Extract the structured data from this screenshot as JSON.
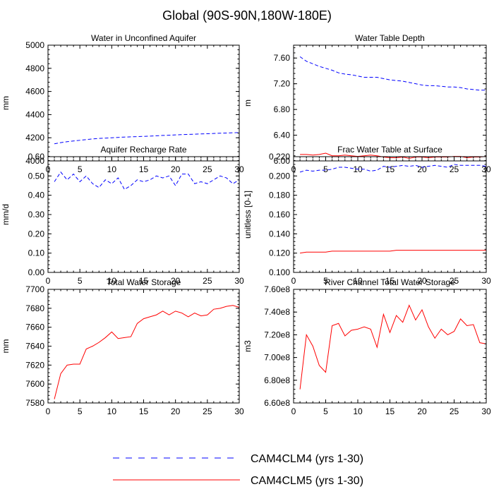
{
  "figure_title": "Global (90S-90N,180W-180E)",
  "colors": {
    "clm4": "#0000ff",
    "clm5": "#ff0000",
    "axis": "#000000",
    "zero_line": "#8b0000"
  },
  "legend": [
    {
      "label": "CAM4CLM4 (yrs 1-30)",
      "style": "dashed",
      "color": "#0000ff"
    },
    {
      "label": "CAM4CLM5 (yrs 1-30)",
      "style": "solid",
      "color": "#ff0000"
    }
  ],
  "chart_data": [
    {
      "type": "line",
      "title": "Water in Unconfined Aquifer",
      "xlabel": "",
      "ylabel": "mm",
      "xlim": [
        0,
        30
      ],
      "ylim": [
        4000,
        5000
      ],
      "xticks": [
        "0",
        "5",
        "10",
        "15",
        "20",
        "25",
        "30"
      ],
      "yticks": [
        "4000",
        "4200",
        "4400",
        "4600",
        "4800",
        "5000"
      ],
      "x": [
        1,
        2,
        3,
        4,
        5,
        6,
        7,
        8,
        9,
        10,
        11,
        12,
        13,
        14,
        15,
        16,
        17,
        18,
        19,
        20,
        21,
        22,
        23,
        24,
        25,
        26,
        27,
        28,
        29,
        30
      ],
      "series": [
        {
          "name": "CAM4CLM4 (yrs 1-30)",
          "values": [
            4148,
            4158,
            4166,
            4172,
            4178,
            4184,
            4190,
            4194,
            4197,
            4200,
            4203,
            4206,
            4208,
            4210,
            4212,
            4214,
            4217,
            4220,
            4222,
            4225,
            4227,
            4229,
            4231,
            4233,
            4235,
            4237,
            4239,
            4241,
            4243,
            4245
          ]
        },
        {
          "name": "CAM4CLM5 (yrs 1-30)",
          "values": [
            5000,
            5000,
            5000,
            5000,
            5000,
            5000,
            5000,
            5000,
            5000,
            5000,
            5000,
            5000,
            5000,
            5000,
            5000,
            5000,
            5000,
            5000,
            5000,
            5000,
            5000,
            5000,
            5000,
            5000,
            5000,
            5000,
            5000,
            5000,
            5000,
            5000
          ]
        }
      ]
    },
    {
      "type": "line",
      "title": "Water Table Depth",
      "xlabel": "",
      "ylabel": "m",
      "xlim": [
        0,
        30
      ],
      "ylim": [
        6.0,
        7.8
      ],
      "xticks": [
        "0",
        "5",
        "10",
        "15",
        "20",
        "25",
        "30"
      ],
      "yticks": [
        "6.00",
        "6.40",
        "6.80",
        "7.20",
        "7.60"
      ],
      "ytick_values": [
        6.0,
        6.4,
        6.8,
        7.2,
        7.6
      ],
      "x": [
        1,
        2,
        3,
        4,
        5,
        6,
        7,
        8,
        9,
        10,
        11,
        12,
        13,
        14,
        15,
        16,
        17,
        18,
        19,
        20,
        21,
        22,
        23,
        24,
        25,
        26,
        27,
        28,
        29,
        30
      ],
      "series": [
        {
          "name": "CAM4CLM4 (yrs 1-30)",
          "values": [
            7.62,
            7.55,
            7.51,
            7.47,
            7.44,
            7.41,
            7.37,
            7.35,
            7.34,
            7.32,
            7.3,
            7.3,
            7.3,
            7.28,
            7.26,
            7.25,
            7.24,
            7.22,
            7.2,
            7.18,
            7.17,
            7.17,
            7.16,
            7.15,
            7.15,
            7.14,
            7.12,
            7.11,
            7.1,
            7.1
          ]
        },
        {
          "name": "CAM4CLM5 (yrs 1-30)",
          "values": [
            6.1,
            6.1,
            6.09,
            6.1,
            6.12,
            6.08,
            6.08,
            6.09,
            6.08,
            6.07,
            6.08,
            6.09,
            6.08,
            6.06,
            6.05,
            6.05,
            6.06,
            6.04,
            6.06,
            6.06,
            6.05,
            6.06,
            6.06,
            6.06,
            6.07,
            6.07,
            6.05,
            6.06,
            6.06,
            6.07
          ]
        }
      ]
    },
    {
      "type": "line",
      "title": "Aquifer Recharge Rate",
      "xlabel": "",
      "ylabel": "mm/d",
      "xlim": [
        0,
        30
      ],
      "ylim": [
        0,
        0.6
      ],
      "xticks": [
        "0",
        "5",
        "10",
        "15",
        "20",
        "25",
        "30"
      ],
      "yticks": [
        "0.00",
        "0.10",
        "0.20",
        "0.30",
        "0.40",
        "0.50",
        "0.60"
      ],
      "ytick_values": [
        0,
        0.1,
        0.2,
        0.3,
        0.4,
        0.5,
        0.6
      ],
      "x": [
        1,
        2,
        3,
        4,
        5,
        6,
        7,
        8,
        9,
        10,
        11,
        12,
        13,
        14,
        15,
        16,
        17,
        18,
        19,
        20,
        21,
        22,
        23,
        24,
        25,
        26,
        27,
        28,
        29,
        30
      ],
      "series": [
        {
          "name": "CAM4CLM4 (yrs 1-30)",
          "values": [
            0.47,
            0.52,
            0.48,
            0.51,
            0.47,
            0.5,
            0.46,
            0.44,
            0.48,
            0.46,
            0.49,
            0.43,
            0.45,
            0.48,
            0.47,
            0.48,
            0.5,
            0.49,
            0.5,
            0.45,
            0.51,
            0.51,
            0.46,
            0.47,
            0.46,
            0.48,
            0.5,
            0.49,
            0.46,
            0.48
          ]
        },
        {
          "name": "CAM4CLM5 (yrs 1-30)",
          "values": [
            0,
            0,
            0,
            0,
            0,
            0,
            0,
            0,
            0,
            0,
            0,
            0,
            0,
            0,
            0,
            0,
            0,
            0,
            0,
            0,
            0,
            0,
            0,
            0,
            0,
            0,
            0,
            0,
            0,
            0
          ]
        }
      ]
    },
    {
      "type": "line",
      "title": "Frac Water Table at Surface",
      "xlabel": "",
      "ylabel": "unitless [0-1]",
      "xlim": [
        0,
        30
      ],
      "ylim": [
        0.1,
        0.22
      ],
      "xticks": [
        "0",
        "5",
        "10",
        "15",
        "20",
        "25",
        "30"
      ],
      "yticks": [
        "0.100",
        "0.120",
        "0.140",
        "0.160",
        "0.180",
        "0.200",
        "0.220"
      ],
      "ytick_values": [
        0.1,
        0.12,
        0.14,
        0.16,
        0.18,
        0.2,
        0.22
      ],
      "x": [
        1,
        2,
        3,
        4,
        5,
        6,
        7,
        8,
        9,
        10,
        11,
        12,
        13,
        14,
        15,
        16,
        17,
        18,
        19,
        20,
        21,
        22,
        23,
        24,
        25,
        26,
        27,
        28,
        29,
        30
      ],
      "series": [
        {
          "name": "CAM4CLM4 (yrs 1-30)",
          "values": [
            0.204,
            0.206,
            0.205,
            0.206,
            0.206,
            0.207,
            0.209,
            0.209,
            0.208,
            0.207,
            0.207,
            0.205,
            0.206,
            0.21,
            0.209,
            0.21,
            0.211,
            0.21,
            0.211,
            0.209,
            0.21,
            0.211,
            0.21,
            0.209,
            0.212,
            0.211,
            0.211,
            0.211,
            0.211,
            0.21
          ]
        },
        {
          "name": "CAM4CLM5 (yrs 1-30)",
          "values": [
            0.12,
            0.121,
            0.121,
            0.121,
            0.121,
            0.122,
            0.122,
            0.122,
            0.122,
            0.122,
            0.122,
            0.122,
            0.122,
            0.122,
            0.122,
            0.123,
            0.123,
            0.123,
            0.123,
            0.123,
            0.123,
            0.123,
            0.123,
            0.123,
            0.123,
            0.123,
            0.123,
            0.123,
            0.123,
            0.123
          ]
        }
      ]
    },
    {
      "type": "line",
      "title": "Total Water Storage",
      "xlabel": "",
      "ylabel": "mm",
      "xlim": [
        0,
        30
      ],
      "ylim": [
        7580,
        7700
      ],
      "xticks": [
        "0",
        "5",
        "10",
        "15",
        "20",
        "25",
        "30"
      ],
      "yticks": [
        "7580",
        "7600",
        "7620",
        "7640",
        "7660",
        "7680",
        "7700"
      ],
      "ytick_values": [
        7580,
        7600,
        7620,
        7640,
        7660,
        7680,
        7700
      ],
      "x": [
        1,
        2,
        3,
        4,
        5,
        6,
        7,
        8,
        9,
        10,
        11,
        12,
        13,
        14,
        15,
        16,
        17,
        18,
        19,
        20,
        21,
        22,
        23,
        24,
        25,
        26,
        27,
        28,
        29,
        30
      ],
      "series": [
        {
          "name": "CAM4CLM5 (yrs 1-30)",
          "values": [
            7584,
            7611,
            7620,
            7621,
            7621,
            7637,
            7640,
            7644,
            7649,
            7655,
            7648,
            7649,
            7650,
            7664,
            7669,
            7671,
            7673,
            7677,
            7673,
            7677,
            7675,
            7671,
            7675,
            7672,
            7673,
            7679,
            7680,
            7682,
            7683,
            7681
          ]
        }
      ]
    },
    {
      "type": "line",
      "title": "River Channel Total Water Storage",
      "xlabel": "",
      "ylabel": "m3",
      "xlim": [
        0,
        30
      ],
      "ylim": [
        660000000.0,
        760000000.0
      ],
      "xticks": [
        "0",
        "5",
        "10",
        "15",
        "20",
        "25",
        "30"
      ],
      "yticks": [
        "6.60e8",
        "6.80e8",
        "7.00e8",
        "7.20e8",
        "7.40e8",
        "7.60e8"
      ],
      "ytick_values": [
        660000000.0,
        680000000.0,
        700000000.0,
        720000000.0,
        740000000.0,
        760000000.0
      ],
      "x": [
        1,
        2,
        3,
        4,
        5,
        6,
        7,
        8,
        9,
        10,
        11,
        12,
        13,
        14,
        15,
        16,
        17,
        18,
        19,
        20,
        21,
        22,
        23,
        24,
        25,
        26,
        27,
        28,
        29,
        30
      ],
      "series": [
        {
          "name": "CAM4CLM5 (yrs 1-30)",
          "values": [
            672000000.0,
            720000000.0,
            710000000.0,
            693000000.0,
            687000000.0,
            728000000.0,
            730000000.0,
            719000000.0,
            724000000.0,
            725000000.0,
            727000000.0,
            725000000.0,
            709000000.0,
            738000000.0,
            722000000.0,
            737000000.0,
            731000000.0,
            746000000.0,
            733000000.0,
            742000000.0,
            727000000.0,
            717000000.0,
            725000000.0,
            720000000.0,
            723000000.0,
            734000000.0,
            728000000.0,
            729000000.0,
            713000000.0,
            712000000.0
          ]
        }
      ]
    }
  ]
}
